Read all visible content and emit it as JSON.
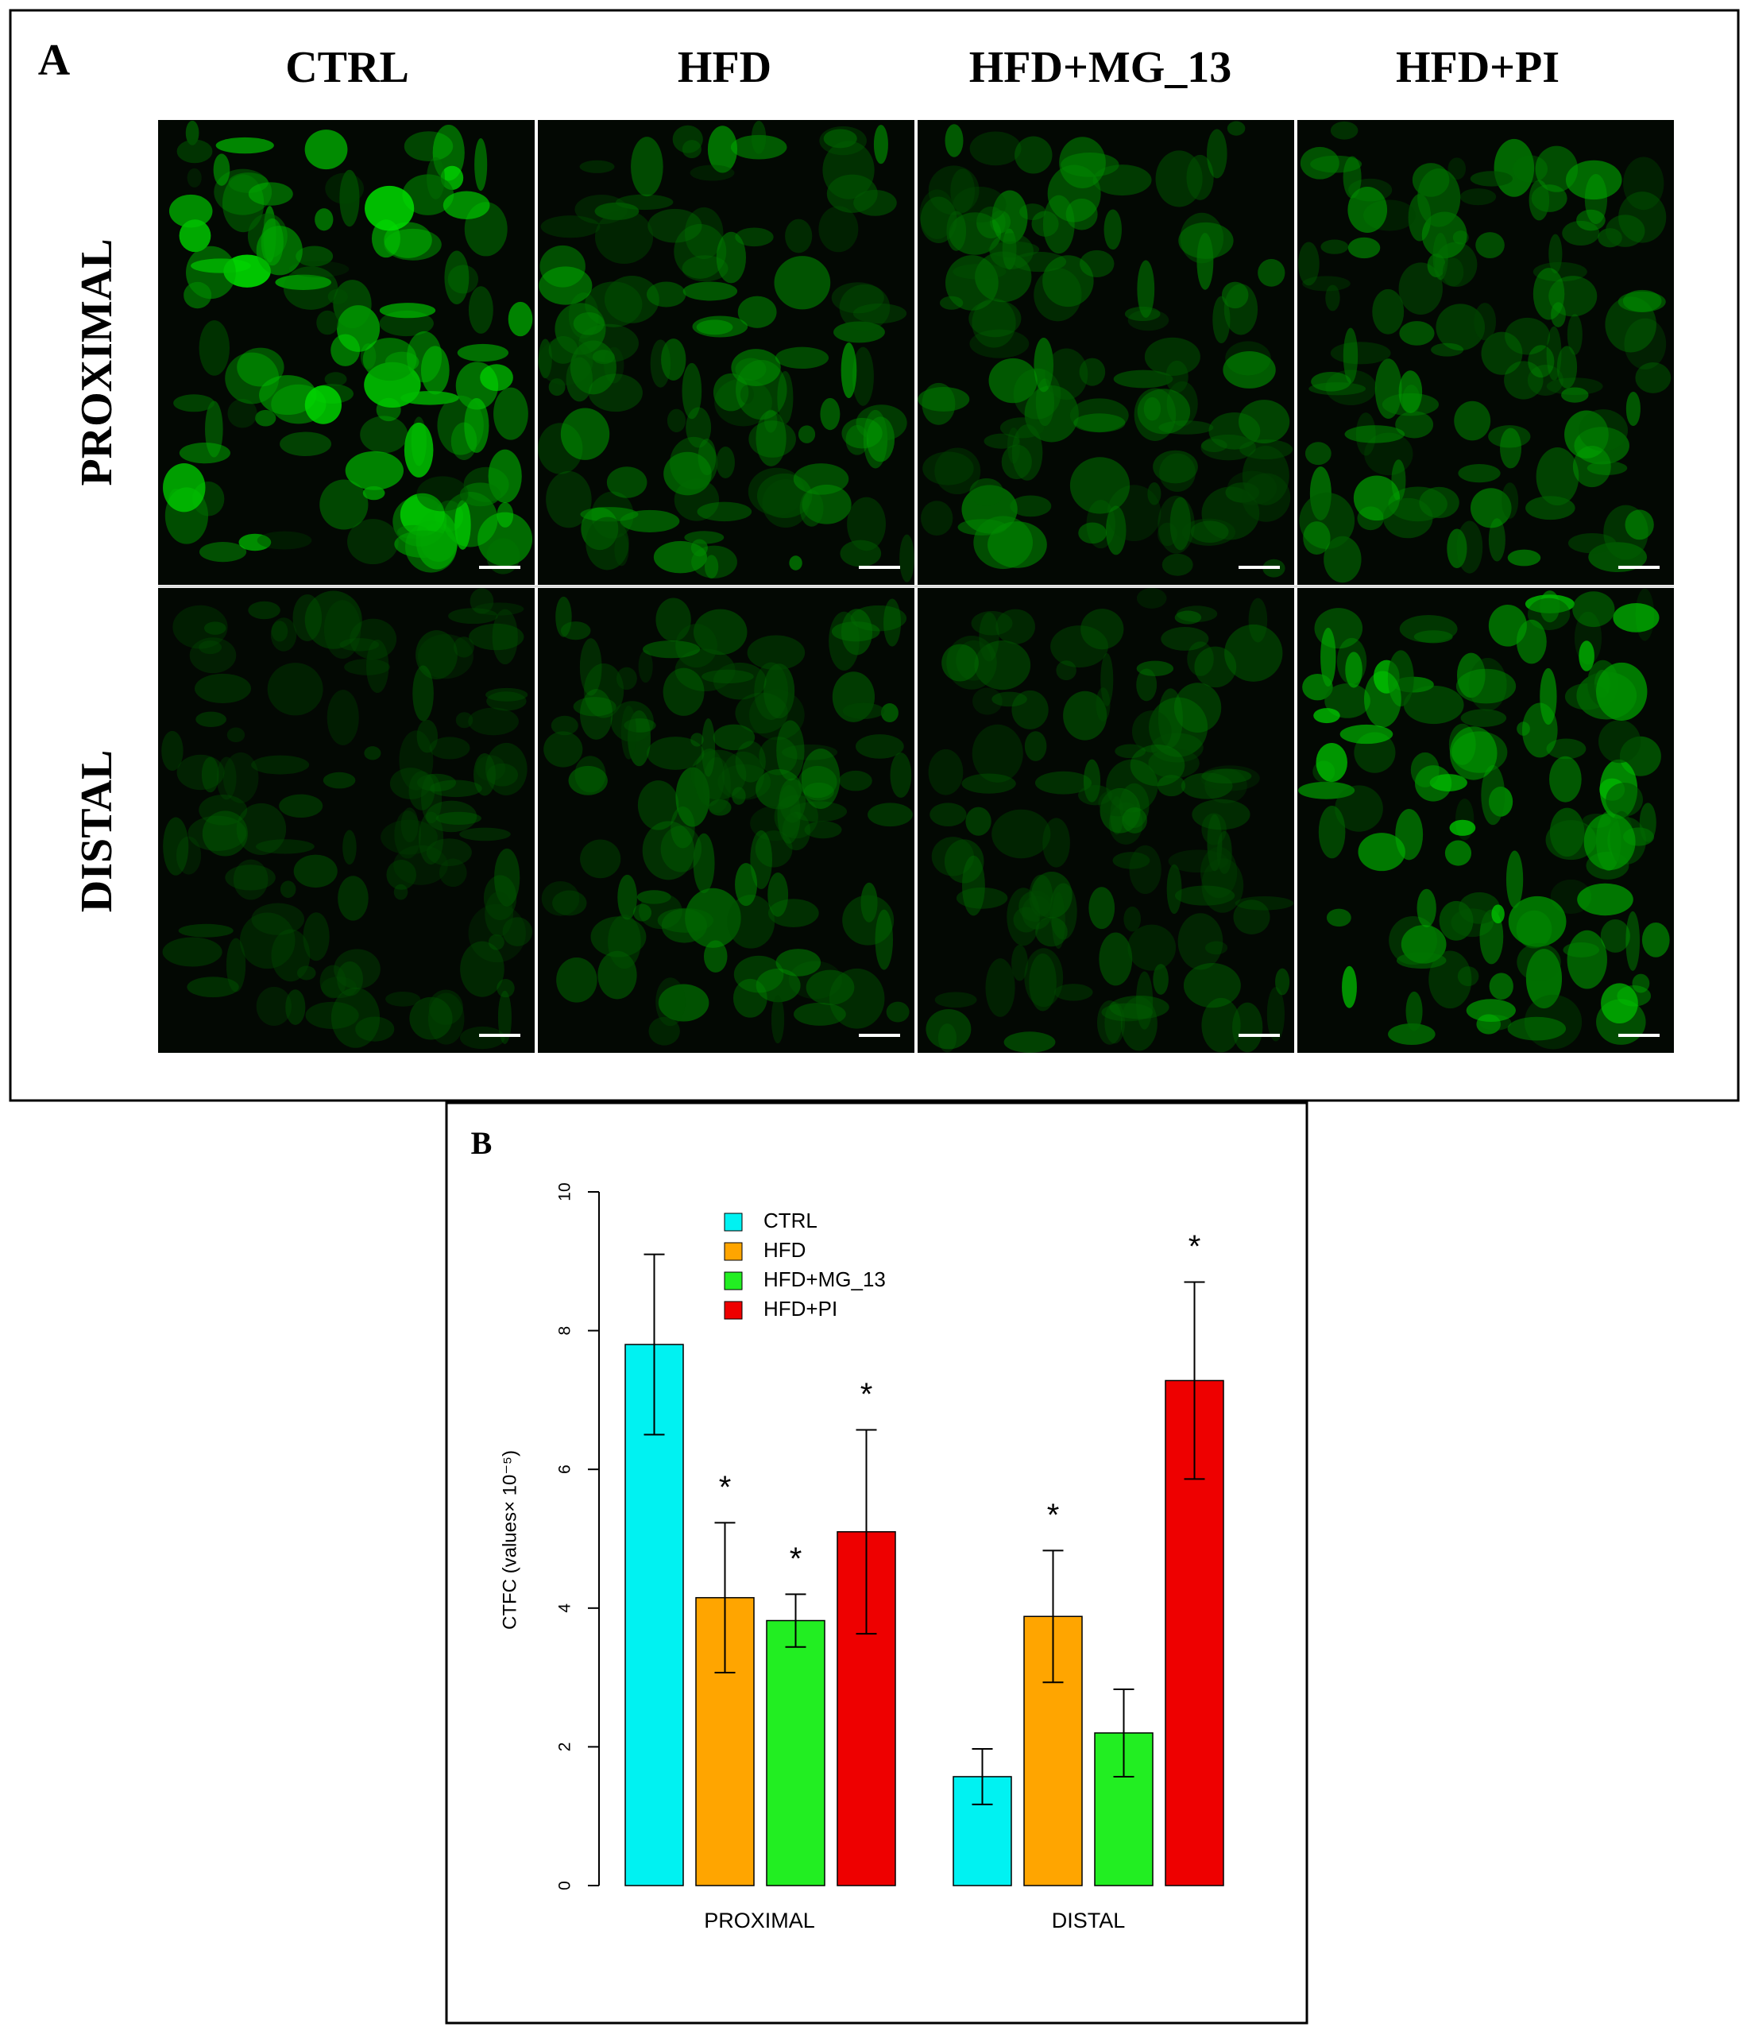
{
  "panel_a": {
    "label": "A",
    "columns": [
      "CTRL",
      "HFD",
      "HFD+MG_13",
      "HFD+PI"
    ],
    "rows": [
      "PROXIMAL",
      "DISTAL"
    ]
  },
  "chart_data": {
    "type": "bar",
    "panel_label": "B",
    "ylabel": "CTFC (values× 10⁻⁵)",
    "categories": [
      "PROXIMAL",
      "DISTAL"
    ],
    "series": [
      {
        "name": "CTRL",
        "color": "#00f2f2",
        "values": [
          7.8,
          1.57
        ],
        "errors": [
          1.3,
          0.4
        ],
        "significance": [
          null,
          null
        ]
      },
      {
        "name": "HFD",
        "color": "#ffa500",
        "values": [
          4.15,
          3.88
        ],
        "errors": [
          1.08,
          0.95
        ],
        "significance": [
          "*",
          "*"
        ]
      },
      {
        "name": "HFD+MG_13",
        "color": "#22ee22",
        "values": [
          3.82,
          2.2
        ],
        "errors": [
          0.38,
          0.63
        ],
        "significance": [
          "*",
          null
        ]
      },
      {
        "name": "HFD+PI",
        "color": "#ee0000",
        "values": [
          5.1,
          7.28
        ],
        "errors": [
          1.47,
          1.42
        ],
        "significance": [
          "*",
          "*"
        ]
      }
    ],
    "ylim": [
      0,
      10
    ],
    "yticks": [
      0,
      2,
      4,
      6,
      8,
      10
    ],
    "legend": "top-left"
  }
}
